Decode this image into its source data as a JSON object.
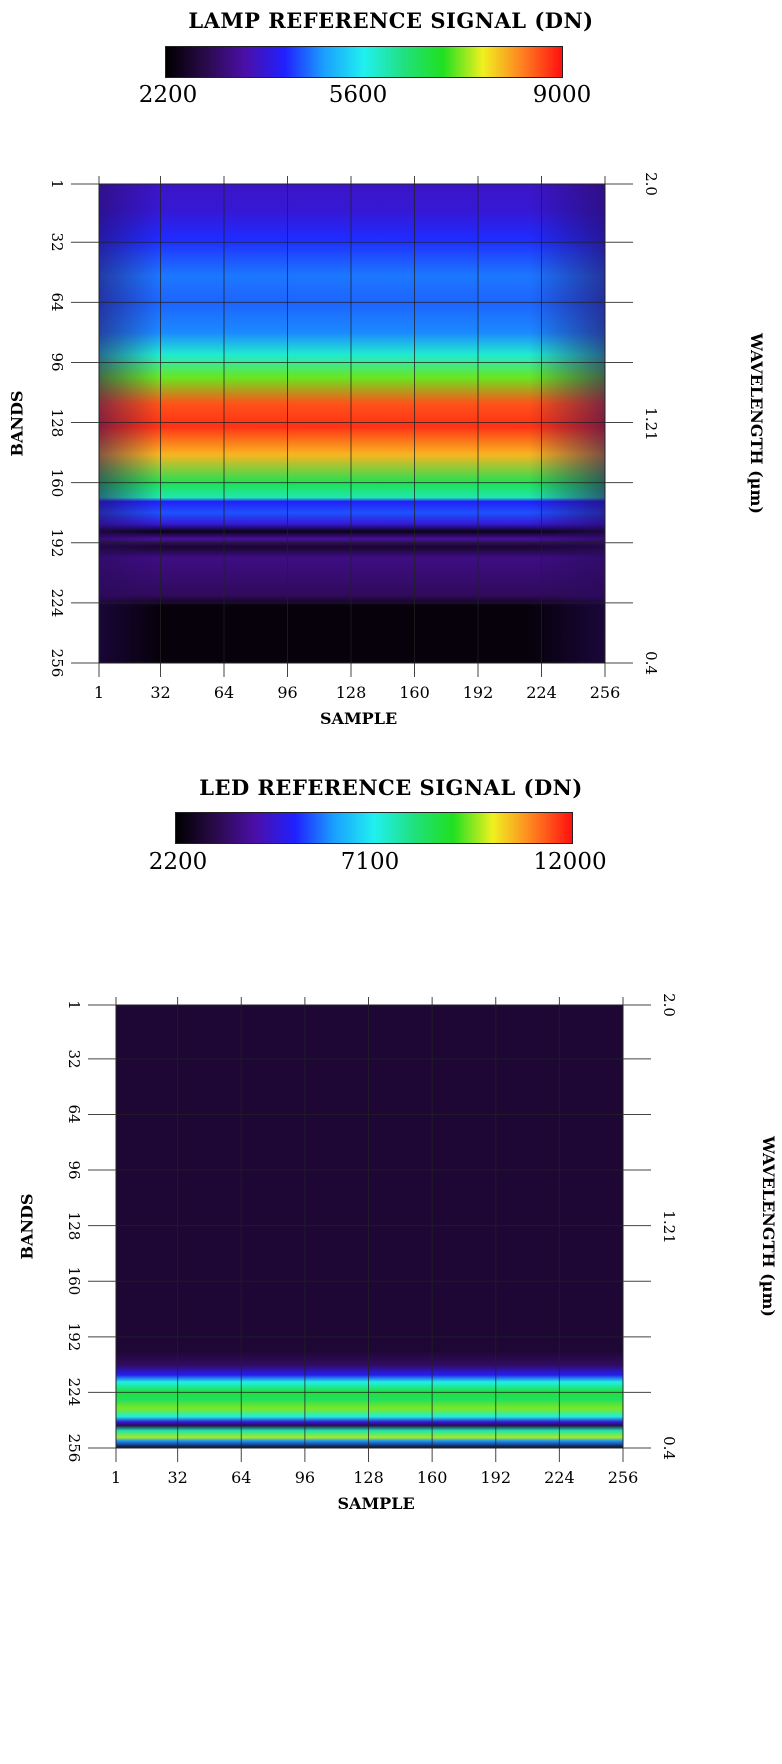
{
  "colorscale": [
    "#000000",
    "#2a0a4a",
    "#4b0fa8",
    "#2020ff",
    "#1aa0ff",
    "#20f0f0",
    "#20e080",
    "#20e020",
    "#f0f020",
    "#ff8020",
    "#ff1010"
  ],
  "chart_data": [
    {
      "type": "heatmap",
      "title": "LAMP REFERENCE SIGNAL (DN)",
      "colorbar": {
        "min": 2200,
        "mid": 5600,
        "max": 9000,
        "labels": [
          "2200",
          "5600",
          "9000"
        ]
      },
      "xlabel": "SAMPLE",
      "ylabel": "BANDS",
      "y2label": "WAVELENGTH (µm)",
      "x_ticks": [
        "1",
        "32",
        "64",
        "96",
        "128",
        "160",
        "192",
        "224",
        "256"
      ],
      "y_ticks": [
        "1",
        "32",
        "64",
        "96",
        "128",
        "160",
        "192",
        "224",
        "256"
      ],
      "y2_ticks": [
        "2.0",
        "1.21",
        "0.4"
      ],
      "xlim": [
        1,
        256
      ],
      "ylim": [
        1,
        256
      ],
      "grid": true,
      "band_profile": [
        {
          "band": 1,
          "dn": 3800
        },
        {
          "band": 15,
          "dn": 3900
        },
        {
          "band": 30,
          "dn": 4300
        },
        {
          "band": 50,
          "dn": 4700
        },
        {
          "band": 64,
          "dn": 4600
        },
        {
          "band": 80,
          "dn": 4800
        },
        {
          "band": 92,
          "dn": 5800
        },
        {
          "band": 104,
          "dn": 7200
        },
        {
          "band": 118,
          "dn": 8600
        },
        {
          "band": 130,
          "dn": 8800
        },
        {
          "band": 145,
          "dn": 8000
        },
        {
          "band": 160,
          "dn": 6600
        },
        {
          "band": 168,
          "dn": 6000
        },
        {
          "band": 170,
          "dn": 4200
        },
        {
          "band": 176,
          "dn": 4500
        },
        {
          "band": 182,
          "dn": 3900
        },
        {
          "band": 186,
          "dn": 2400
        },
        {
          "band": 190,
          "dn": 3500
        },
        {
          "band": 194,
          "dn": 2600
        },
        {
          "band": 200,
          "dn": 3300
        },
        {
          "band": 220,
          "dn": 3000
        },
        {
          "band": 226,
          "dn": 2300
        },
        {
          "band": 256,
          "dn": 2300
        }
      ]
    },
    {
      "type": "heatmap",
      "title": "LED REFERENCE SIGNAL (DN)",
      "colorbar": {
        "min": 2200,
        "mid": 7100,
        "max": 12000,
        "labels": [
          "2200",
          "7100",
          "12000"
        ]
      },
      "xlabel": "SAMPLE",
      "ylabel": "BANDS",
      "y2label": "WAVELENGTH (µm)",
      "x_ticks": [
        "1",
        "32",
        "64",
        "96",
        "128",
        "160",
        "192",
        "224",
        "256"
      ],
      "y_ticks": [
        "1",
        "32",
        "64",
        "96",
        "128",
        "160",
        "192",
        "224",
        "256"
      ],
      "y2_ticks": [
        "2.0",
        "1.21",
        "0.4"
      ],
      "xlim": [
        1,
        256
      ],
      "ylim": [
        1,
        256
      ],
      "grid": true,
      "band_profile": [
        {
          "band": 1,
          "dn": 2900
        },
        {
          "band": 200,
          "dn": 2900
        },
        {
          "band": 208,
          "dn": 3400
        },
        {
          "band": 214,
          "dn": 5000
        },
        {
          "band": 218,
          "dn": 7200
        },
        {
          "band": 224,
          "dn": 8800
        },
        {
          "band": 228,
          "dn": 8400
        },
        {
          "band": 233,
          "dn": 9500
        },
        {
          "band": 238,
          "dn": 7300
        },
        {
          "band": 241,
          "dn": 4700
        },
        {
          "band": 243,
          "dn": 3200
        },
        {
          "band": 246,
          "dn": 7700
        },
        {
          "band": 250,
          "dn": 9700
        },
        {
          "band": 252,
          "dn": 6000
        },
        {
          "band": 256,
          "dn": 2600
        }
      ]
    }
  ]
}
